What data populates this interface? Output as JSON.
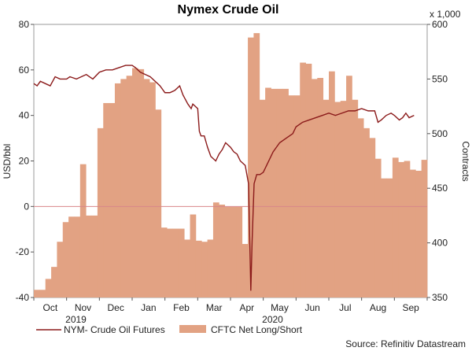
{
  "chart_data": {
    "type": "bar+line",
    "title": "Nymex Crude Oil",
    "ylabel_left": "USD/bbl",
    "ylabel_right": "Contracts",
    "right_multiplier": "x 1,000",
    "source": "Source: Refinitiv Datastream",
    "ylim_left": [
      -40,
      80
    ],
    "ylim_right": [
      350,
      600
    ],
    "yticks_left": [
      "-40",
      "-20",
      "0",
      "20",
      "40",
      "60",
      "80"
    ],
    "yticks_right": [
      "350",
      "400",
      "450",
      "500",
      "550",
      "600"
    ],
    "month_labels": [
      "Oct",
      "Nov",
      "Dec",
      "Jan",
      "Feb",
      "Mar",
      "Apr",
      "May",
      "Jun",
      "Jul",
      "Aug",
      "Sep"
    ],
    "year_labels": [
      "2019",
      "2020"
    ],
    "colors": {
      "bars": "#e2a283",
      "line": "#8b1a1a",
      "zero_line": "#d8868a"
    },
    "bar_series": {
      "name": "CFTC Net Long/Short",
      "unit": "thousand contracts",
      "values": [
        357,
        357,
        367,
        378,
        401,
        419,
        424,
        424,
        472,
        425,
        425,
        505,
        528,
        528,
        546,
        550,
        553,
        560,
        559,
        550,
        547,
        522,
        414,
        413,
        413,
        413,
        403,
        426,
        402,
        401,
        403,
        437,
        435,
        433,
        433,
        433,
        399,
        588,
        592,
        531,
        542,
        541,
        541,
        541,
        535,
        535,
        565,
        564,
        550,
        551,
        531,
        557,
        529,
        530,
        553,
        531,
        514,
        505,
        496,
        477,
        459,
        459,
        478,
        474,
        475,
        467,
        466,
        476
      ]
    },
    "line_series": {
      "name": "NYM- Crude Oil Futures",
      "unit": "USD/bbl",
      "points": [
        [
          0.0,
          54
        ],
        [
          0.1,
          53
        ],
        [
          0.2,
          55
        ],
        [
          0.35,
          54
        ],
        [
          0.5,
          53
        ],
        [
          0.65,
          57
        ],
        [
          0.8,
          56
        ],
        [
          1.0,
          56
        ],
        [
          1.1,
          57
        ],
        [
          1.3,
          56
        ],
        [
          1.45,
          57
        ],
        [
          1.6,
          58
        ],
        [
          1.8,
          56
        ],
        [
          2.0,
          59
        ],
        [
          2.2,
          60
        ],
        [
          2.4,
          60
        ],
        [
          2.6,
          61
        ],
        [
          2.8,
          62
        ],
        [
          3.0,
          62
        ],
        [
          3.1,
          61
        ],
        [
          3.25,
          59
        ],
        [
          3.4,
          58
        ],
        [
          3.55,
          57
        ],
        [
          3.7,
          55
        ],
        [
          3.85,
          53
        ],
        [
          4.0,
          50
        ],
        [
          4.15,
          50
        ],
        [
          4.3,
          51
        ],
        [
          4.45,
          53
        ],
        [
          4.55,
          49
        ],
        [
          4.7,
          45
        ],
        [
          4.8,
          43
        ],
        [
          4.85,
          45
        ],
        [
          5.0,
          43
        ],
        [
          5.05,
          33
        ],
        [
          5.1,
          31
        ],
        [
          5.2,
          31
        ],
        [
          5.3,
          26
        ],
        [
          5.4,
          22
        ],
        [
          5.55,
          20
        ],
        [
          5.65,
          23
        ],
        [
          5.75,
          25
        ],
        [
          5.85,
          28
        ],
        [
          6.0,
          26
        ],
        [
          6.1,
          24
        ],
        [
          6.2,
          23
        ],
        [
          6.3,
          20
        ],
        [
          6.45,
          18
        ],
        [
          6.55,
          10
        ],
        [
          6.62,
          -37
        ],
        [
          6.66,
          -15
        ],
        [
          6.72,
          10
        ],
        [
          6.8,
          14
        ],
        [
          6.9,
          14
        ],
        [
          7.0,
          15
        ],
        [
          7.1,
          18
        ],
        [
          7.3,
          24
        ],
        [
          7.5,
          28
        ],
        [
          7.7,
          30
        ],
        [
          7.9,
          32
        ],
        [
          8.0,
          35
        ],
        [
          8.2,
          37
        ],
        [
          8.4,
          38
        ],
        [
          8.6,
          39
        ],
        [
          8.8,
          40
        ],
        [
          9.0,
          41
        ],
        [
          9.2,
          40
        ],
        [
          9.4,
          41
        ],
        [
          9.6,
          42
        ],
        [
          9.8,
          42
        ],
        [
          10.0,
          43
        ],
        [
          10.2,
          42
        ],
        [
          10.4,
          42
        ],
        [
          10.5,
          37
        ],
        [
          10.6,
          38
        ],
        [
          10.75,
          40
        ],
        [
          10.9,
          41
        ],
        [
          11.0,
          40
        ],
        [
          11.15,
          38
        ],
        [
          11.25,
          39
        ],
        [
          11.35,
          41
        ],
        [
          11.45,
          39
        ],
        [
          11.6,
          40
        ]
      ]
    },
    "legend": {
      "line_label": "NYM- Crude Oil Futures",
      "bar_label": "CFTC Net Long/Short"
    }
  }
}
